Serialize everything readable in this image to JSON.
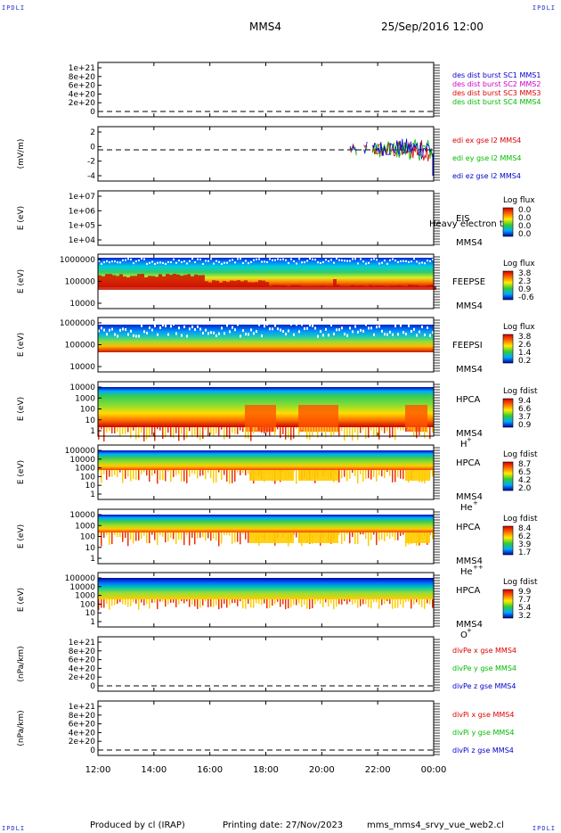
{
  "corner_label": "IPDLI",
  "header": {
    "spacecraft": "MMS4",
    "datetime": "25/Sep/2016 12:00"
  },
  "footer": {
    "produced_by": "Produced by cl (IRAP)",
    "printing_date": "Printing date: 27/Nov/2023",
    "file": "mms_mms4_srvy_vue_web2.cl"
  },
  "x_ticks": [
    "12:00",
    "14:00",
    "16:00",
    "18:00",
    "20:00",
    "22:00",
    "00:00"
  ],
  "colors": {
    "red": "#dd0000",
    "magenta": "#cc00cc",
    "green": "#00bb00",
    "blue": "#0000cc"
  },
  "panels": [
    {
      "id": "dist",
      "ylabel": "",
      "yticks": [
        "1e+21",
        "8e+20",
        "6e+20",
        "4e+20",
        "2e+20",
        "0"
      ],
      "legend": [
        {
          "text": "des dist burst SC1 MMS1",
          "color": "#0000cc"
        },
        {
          "text": "des dist burst SC2 MMS2",
          "color": "#cc00cc"
        },
        {
          "text": "des dist burst SC3 MMS3",
          "color": "#dd0000"
        },
        {
          "text": "des dist burst SC4 MMS4",
          "color": "#00bb00"
        }
      ]
    },
    {
      "id": "edi",
      "ylabel": "(mV/m)",
      "yticks": [
        "2",
        "0",
        "-2",
        "-4"
      ],
      "legend": [
        {
          "text": "edi ex gse l2 MMS4",
          "color": "#dd0000"
        },
        {
          "text": "edi ey gse l2 MMS4",
          "color": "#00bb00"
        },
        {
          "text": "edi ez gse l2 MMS4",
          "color": "#0000cc"
        }
      ]
    },
    {
      "id": "eis",
      "ylabel": "E (eV)",
      "yticks": [
        "1e+07",
        "1e+06",
        "1e+05",
        "1e+04"
      ],
      "side": [
        "EIS",
        "MMS4"
      ],
      "overlay": "Heavy electron to",
      "cb_title": "Log flux",
      "cb_ticks": [
        "0.0",
        "0.0",
        "0.0",
        "0.0"
      ]
    },
    {
      "id": "feepse",
      "ylabel": "E (eV)",
      "yticks": [
        "1000000",
        "100000",
        "10000"
      ],
      "side": [
        "FEEPSE",
        "MMS4"
      ],
      "cb_title": "Log flux",
      "cb_ticks": [
        "3.8",
        "2.3",
        "0.9",
        "-0.6"
      ]
    },
    {
      "id": "feepsi",
      "ylabel": "E (eV)",
      "yticks": [
        "1000000",
        "100000",
        "10000"
      ],
      "side": [
        "FEEPSI",
        "MMS4"
      ],
      "cb_title": "Log flux",
      "cb_ticks": [
        "3.8",
        "2.6",
        "1.4",
        "0.2"
      ]
    },
    {
      "id": "hpca_h",
      "ylabel": "E (eV)",
      "yticks": [
        "10000",
        "1000",
        "100",
        "10",
        "1"
      ],
      "side": [
        "HPCA",
        "MMS4"
      ],
      "species": "H",
      "species_sup": "+",
      "cb_title": "Log fdist",
      "cb_ticks": [
        "9.4",
        "6.6",
        "3.7",
        "0.9"
      ]
    },
    {
      "id": "hpca_he",
      "ylabel": "E (eV)",
      "yticks": [
        "100000",
        "10000",
        "1000",
        "100",
        "10",
        "1"
      ],
      "side": [
        "HPCA",
        "MMS4"
      ],
      "species": "He",
      "species_sup": "+",
      "cb_title": "Log fdist",
      "cb_ticks": [
        "8.7",
        "6.5",
        "4.2",
        "2.0"
      ]
    },
    {
      "id": "hpca_hepp",
      "ylabel": "E (eV)",
      "yticks": [
        "10000",
        "1000",
        "100",
        "10",
        "1"
      ],
      "side": [
        "HPCA",
        "MMS4"
      ],
      "species": "He",
      "species_sup": "++",
      "cb_title": "Log fdist",
      "cb_ticks": [
        "8.4",
        "6.2",
        "3.9",
        "1.7"
      ]
    },
    {
      "id": "hpca_o",
      "ylabel": "E (eV)",
      "yticks": [
        "100000",
        "10000",
        "1000",
        "100",
        "10",
        "1"
      ],
      "side": [
        "HPCA",
        "MMS4"
      ],
      "species": "O",
      "species_sup": "+",
      "cb_title": "Log fdist",
      "cb_ticks": [
        "9.9",
        "7.7",
        "5.4",
        "3.2"
      ]
    },
    {
      "id": "divpe",
      "ylabel": "(nPa/km)",
      "yticks": [
        "1e+21",
        "8e+20",
        "6e+20",
        "4e+20",
        "2e+20",
        "0"
      ],
      "legend": [
        {
          "text": "divPe x gse MMS4",
          "color": "#dd0000"
        },
        {
          "text": "divPe y gse MMS4",
          "color": "#00bb00"
        },
        {
          "text": "divPe z gse MMS4",
          "color": "#0000cc"
        }
      ]
    },
    {
      "id": "divpi",
      "ylabel": "(nPa/km)",
      "yticks": [
        "1e+21",
        "8e+20",
        "6e+20",
        "4e+20",
        "2e+20",
        "0"
      ],
      "legend": [
        {
          "text": "divPi x gse MMS4",
          "color": "#dd0000"
        },
        {
          "text": "divPi y gse MMS4",
          "color": "#00bb00"
        },
        {
          "text": "divPi z gse MMS4",
          "color": "#0000cc"
        }
      ]
    }
  ],
  "chart_data": {
    "type": "heatmap",
    "x_range": [
      "12:00",
      "00:00"
    ],
    "series": [
      {
        "name": "des dist burst SC4 MMS4",
        "ylim": [
          0,
          1e+21
        ]
      },
      {
        "name": "edi ex gse l2 MMS4",
        "ylim": [
          -4,
          3
        ],
        "active_range": [
          "20:55",
          "00:00"
        ]
      },
      {
        "name": "EIS",
        "ylim": [
          10000.0,
          10000000.0
        ],
        "log": true
      },
      {
        "name": "FEEPSE",
        "ylim": [
          10000.0,
          1000000.0
        ],
        "log": true,
        "colorbar": [
          -0.6,
          3.8
        ]
      },
      {
        "name": "FEEPSI",
        "ylim": [
          10000.0,
          1000000.0
        ],
        "log": true,
        "colorbar": [
          0.2,
          3.8
        ]
      },
      {
        "name": "HPCA H+",
        "ylim": [
          1,
          30000
        ],
        "log": true,
        "colorbar": [
          0.9,
          9.4
        ]
      },
      {
        "name": "HPCA He+",
        "ylim": [
          1,
          100000
        ],
        "log": true,
        "colorbar": [
          2.0,
          8.7
        ]
      },
      {
        "name": "HPCA He++",
        "ylim": [
          1,
          30000
        ],
        "log": true,
        "colorbar": [
          1.7,
          8.4
        ]
      },
      {
        "name": "HPCA O+",
        "ylim": [
          1,
          100000
        ],
        "log": true,
        "colorbar": [
          3.2,
          9.9
        ]
      },
      {
        "name": "divPe x gse MMS4",
        "ylim": [
          0,
          1e+21
        ]
      },
      {
        "name": "divPi x gse MMS4",
        "ylim": [
          0,
          1e+21
        ]
      }
    ]
  }
}
